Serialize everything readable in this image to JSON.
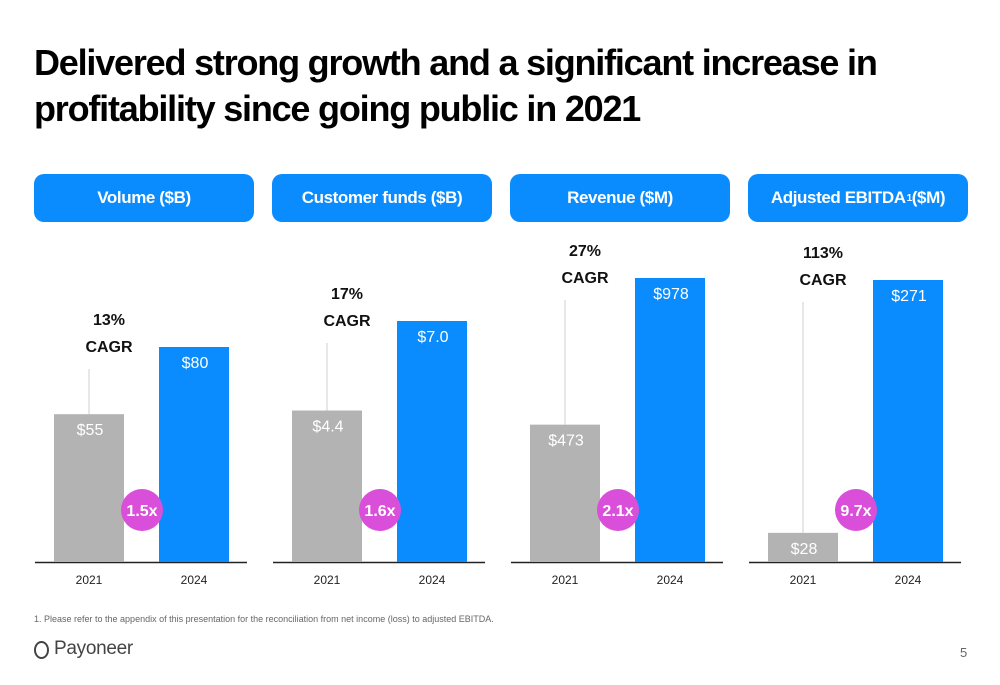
{
  "title_line1": "Delivered strong growth and a significant increase in",
  "title_line2": "profitability since going public in 2021",
  "panels": [
    {
      "label": "Volume ($B)",
      "sup": ""
    },
    {
      "label": "Customer funds ($B)",
      "sup": ""
    },
    {
      "label": "Revenue ($M)",
      "sup": ""
    },
    {
      "label": "Adjusted EBITDA",
      "sup": "1",
      "suffix": " ($M)"
    }
  ],
  "chart_data": [
    {
      "type": "bar",
      "categories": [
        "2021",
        "2024"
      ],
      "values": [
        55,
        80
      ],
      "data_labels": [
        "$55",
        "$80"
      ],
      "cagr_pct": "13%",
      "cagr_label": "CAGR",
      "multiple": "1.5x"
    },
    {
      "type": "bar",
      "categories": [
        "2021",
        "2024"
      ],
      "values": [
        4.4,
        7.0
      ],
      "data_labels": [
        "$4.4",
        "$7.0"
      ],
      "cagr_pct": "17%",
      "cagr_label": "CAGR",
      "multiple": "1.6x"
    },
    {
      "type": "bar",
      "categories": [
        "2021",
        "2024"
      ],
      "values": [
        473,
        978
      ],
      "data_labels": [
        "$473",
        "$978"
      ],
      "cagr_pct": "27%",
      "cagr_label": "CAGR",
      "multiple": "2.1x"
    },
    {
      "type": "bar",
      "categories": [
        "2021",
        "2024"
      ],
      "values": [
        28,
        271
      ],
      "data_labels": [
        "$28",
        "$271"
      ],
      "cagr_pct": "113%",
      "cagr_label": "CAGR",
      "multiple": "9.7x"
    }
  ],
  "colors": {
    "bar_2021": "#b3b3b3",
    "bar_2024": "#0a8cff",
    "multiple_badge": "#d94fd9",
    "header_pill": "#0a8cff"
  },
  "footnote": "1. Please refer to the appendix of this presentation for the reconciliation from net income (loss) to adjusted EBITDA.",
  "brand": "Payoneer",
  "page_number": "5"
}
